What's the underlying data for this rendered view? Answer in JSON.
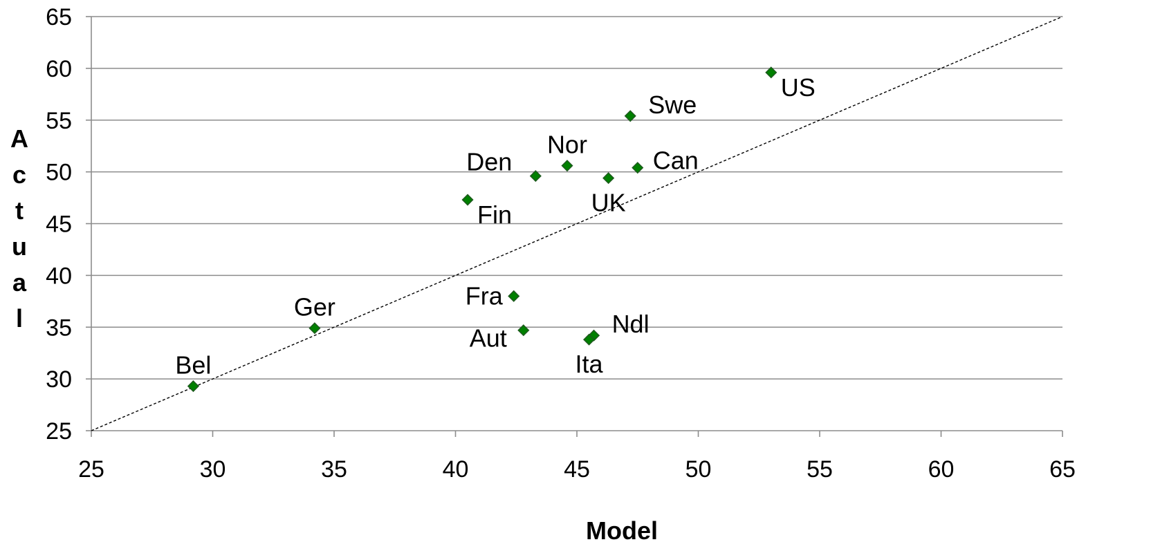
{
  "chart_data": {
    "type": "scatter",
    "xlabel": "Model",
    "ylabel": "Actual",
    "xlim": [
      25,
      65
    ],
    "ylim": [
      25,
      65
    ],
    "x_ticks": [
      "25",
      "30",
      "35",
      "40",
      "45",
      "50",
      "55",
      "60",
      "65"
    ],
    "y_ticks": [
      "25",
      "30",
      "35",
      "40",
      "45",
      "50",
      "55",
      "60",
      "65"
    ],
    "grid": "horizontal",
    "reference_line": {
      "style": "dashed",
      "from": [
        25,
        25
      ],
      "to": [
        65,
        65
      ]
    },
    "marker_color": "#008000",
    "marker_edge_color": "#1f5a1f",
    "points": [
      {
        "label": "US",
        "x": 53.0,
        "y": 59.6,
        "label_pos": "below-right"
      },
      {
        "label": "Swe",
        "x": 47.2,
        "y": 55.4,
        "label_pos": "above-right"
      },
      {
        "label": "Nor",
        "x": 44.6,
        "y": 50.6,
        "label_pos": "above"
      },
      {
        "label": "Can",
        "x": 47.5,
        "y": 50.4,
        "label_pos": "right"
      },
      {
        "label": "Den",
        "x": 43.3,
        "y": 49.6,
        "label_pos": "above-left"
      },
      {
        "label": "UK",
        "x": 46.3,
        "y": 49.4,
        "label_pos": "below"
      },
      {
        "label": "Fin",
        "x": 40.5,
        "y": 47.3,
        "label_pos": "below-right"
      },
      {
        "label": "Fra",
        "x": 42.4,
        "y": 38.0,
        "label_pos": "left"
      },
      {
        "label": "Ger",
        "x": 34.2,
        "y": 34.9,
        "label_pos": "above"
      },
      {
        "label": "Aut",
        "x": 42.8,
        "y": 34.7,
        "label_pos": "below-left"
      },
      {
        "label": "Ndl",
        "x": 45.7,
        "y": 34.2,
        "label_pos": "above-right"
      },
      {
        "label": "Ita",
        "x": 45.5,
        "y": 33.8,
        "label_pos": "below"
      },
      {
        "label": "Bel",
        "x": 29.2,
        "y": 29.3,
        "label_pos": "above"
      }
    ]
  }
}
